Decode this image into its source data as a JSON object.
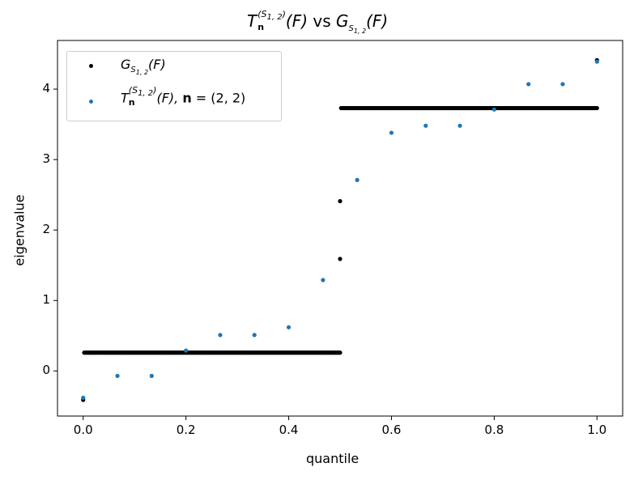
{
  "chart_data": {
    "type": "scatter",
    "title": {
      "T": "T",
      "n": "n",
      "sup": "(S",
      "sup_sub": "1, 2",
      "sup_close": ")",
      "F": "(F)",
      "vs": " vs ",
      "G": "G",
      "G_sub": "S",
      "G_sub_sub": "1, 2"
    },
    "xlabel": "quantile",
    "ylabel": "eigenvalue",
    "xlim": [
      -0.05,
      1.05
    ],
    "ylim": [
      -0.64,
      4.69
    ],
    "xticks": [
      "0.0",
      "0.2",
      "0.4",
      "0.6",
      "0.8",
      "1.0"
    ],
    "yticks": [
      "0",
      "1",
      "2",
      "3",
      "4"
    ],
    "grid": false,
    "legend_position": "top-left",
    "legend": [
      {
        "label": "G_{S_{1,2}}(F)",
        "text_G": "G",
        "text_sub": "S",
        "text_subsub": "1, 2",
        "text_F": "(F)"
      },
      {
        "label": "T_n^{(S_{1,2})}(F), n = (2, 2)",
        "text_T": "T",
        "text_n": "n",
        "text_sup": "(S",
        "text_supsub": "1, 2",
        "text_supclose": ")",
        "text_F": "(F), ",
        "text_bold_n": "n",
        "text_rest": " = (2, 2)"
      }
    ],
    "series": [
      {
        "color": "#000000",
        "description_levels": [
          {
            "x_from": 0.0,
            "x_to": 0.0,
            "y": -0.41
          },
          {
            "x_from": 0.002,
            "x_to": 0.5,
            "y": 0.26
          },
          {
            "x_from": 0.5,
            "x_to": 0.5,
            "y": 1.59
          },
          {
            "x_from": 0.5,
            "x_to": 0.5,
            "y": 2.41
          },
          {
            "x_from": 0.502,
            "x_to": 1.0,
            "y": 3.73
          },
          {
            "x_from": 1.0,
            "x_to": 1.0,
            "y": 4.41
          }
        ]
      },
      {
        "color": "#1f77b4",
        "x": [
          0.0,
          0.0667,
          0.1333,
          0.2,
          0.2667,
          0.3333,
          0.4,
          0.4667,
          0.5333,
          0.6,
          0.6667,
          0.7333,
          0.8,
          0.8667,
          0.9333,
          1.0
        ],
        "y": [
          -0.38,
          -0.07,
          -0.07,
          0.29,
          0.51,
          0.51,
          0.62,
          1.29,
          2.71,
          3.38,
          3.48,
          3.48,
          3.71,
          4.07,
          4.07,
          4.39
        ]
      }
    ]
  }
}
